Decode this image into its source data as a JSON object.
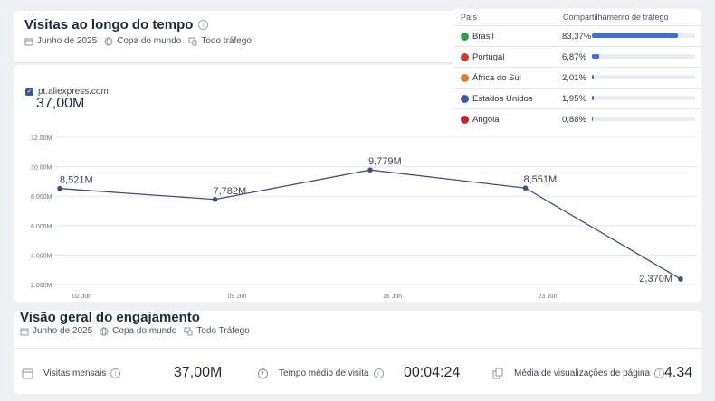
{
  "visits": {
    "title": "Visitas ao longo do tempo",
    "filters": [
      "Junho de 2025",
      "Copa do mundo",
      "Todo tráfego"
    ]
  },
  "legend": {
    "site": "pt.aliexpress.com",
    "total": "37,00M"
  },
  "chart_data": {
    "type": "line",
    "categories": [
      "02 Jun",
      "09 Jun",
      "16 Jun",
      "23 Jun"
    ],
    "x": [
      "2025-06-01",
      "2025-06-08",
      "2025-06-15",
      "2025-06-22",
      "2025-06-29"
    ],
    "series": [
      {
        "values": [
          8.521,
          7.782,
          9.779,
          8.551,
          2.37
        ]
      }
    ],
    "data_labels": [
      "8,521M",
      "7,782M",
      "9,779M",
      "8,551M",
      "2,370M"
    ],
    "y_ticks": [
      "12.00M",
      "10.00M",
      "8.000M",
      "6.000M",
      "4.000M",
      "2.000M"
    ],
    "ylim": [
      2,
      12
    ],
    "grid": true,
    "color": "#3d5176"
  },
  "countries": {
    "col_country": "País",
    "col_share": "Compartilhamento de tráfego",
    "rows": [
      {
        "name": "Brasil",
        "pct": "83,37%",
        "share": 0.8337,
        "flag": "#2e9b4a"
      },
      {
        "name": "Portugal",
        "pct": "6,87%",
        "share": 0.0687,
        "flag": "#d23a2f"
      },
      {
        "name": "África do Sul",
        "pct": "2,01%",
        "share": 0.0201,
        "flag": "#e07a2f"
      },
      {
        "name": "Estados Unidos",
        "pct": "1,95%",
        "share": 0.0195,
        "flag": "#3c5aa8"
      },
      {
        "name": "Angola",
        "pct": "0,88%",
        "share": 0.0088,
        "flag": "#c8232c"
      }
    ]
  },
  "engagement": {
    "title": "Visão geral do engajamento",
    "filters": [
      "Junho de 2025",
      "Copa do mundo",
      "Todo Tráfego"
    ],
    "metrics": [
      {
        "label": "Visitas mensais",
        "value": "37,00M",
        "icon": "calendar-icon"
      },
      {
        "label": "Tempo médio de visita",
        "value": "00:04:24",
        "icon": "stopwatch-icon"
      },
      {
        "label": "Média de visualizações de página",
        "value": "4.34",
        "icon": "pages-icon"
      }
    ]
  }
}
